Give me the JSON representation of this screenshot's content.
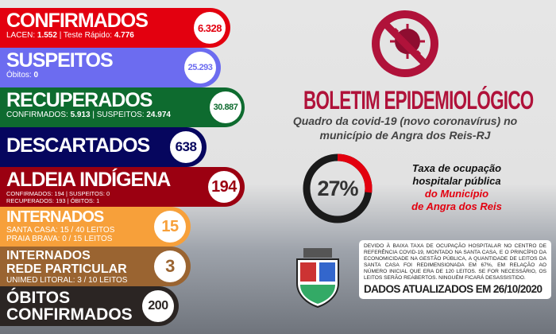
{
  "cards": [
    {
      "title": "CONFIRMADOS",
      "sub1": "LACEN: ",
      "v1": "1.552",
      "sep": " | Teste Rápido: ",
      "v2": "4.776",
      "value": "6.328",
      "color": "#e3000f"
    },
    {
      "title": "SUSPEITOS",
      "sub1": "Óbitos: ",
      "v1": "0",
      "value": "25.293",
      "color": "#6c6cf0"
    },
    {
      "title": "RECUPERADOS",
      "sub1": "CONFIRMADOS: ",
      "v1": "5.913",
      "sep": " | SUSPEITOS: ",
      "v2": "24.974",
      "value": "30.887",
      "color": "#0e6b2f"
    },
    {
      "title": "DESCARTADOS",
      "value": "638",
      "color": "#06065e"
    },
    {
      "title": "ALDEIA INDÍGENA",
      "line1": "CONFIRMADOS: 194 | SUSPEITOS: 0",
      "line2": "RECUPERADOS: 193 | ÓBITOS: 1",
      "value": "194",
      "color": "#9b0011"
    },
    {
      "title": "INTERNADOS",
      "line1": "SANTA CASA: 15 / 40 LEITOS",
      "line2": "PRAIA BRAVA: 0 / 15 LEITOS",
      "value": "15",
      "color": "#f7a03a"
    },
    {
      "title": "INTERNADOS",
      "title2": "REDE PARTICULAR",
      "line1": "UNIMED LITORAL: 3 / 10 LEITOS",
      "value": "3",
      "color": "#9a6431"
    },
    {
      "title": "ÓBITOS",
      "title2": "CONFIRMADOS",
      "value": "200",
      "color": "#2b2523"
    }
  ],
  "header": {
    "title": "BOLETIM EPIDEMIOLÓGICO",
    "subtitle1": "Quadro da covid-19 (novo coronavírus) no",
    "subtitle2": "município de Angra dos Reis-RJ",
    "icon": "no-virus-icon",
    "accent": "#b0123a"
  },
  "occupancy": {
    "percent": 27,
    "label": "27%",
    "text1": "Taxa de ocupação",
    "text2": "hospitalar pública",
    "text3": "do Município",
    "text4": "de Angra dos Reis"
  },
  "notice": {
    "text": "DEVIDO À BAIXA TAXA DE OCUPAÇÃO HOSPITALAR NO CENTRO DE REFERÊNCIA COVID-19, MONTADO NA SANTA CASA, E O PRINCÍPIO DA ECONOMICIDADE NA GESTÃO PÚBLICA, A QUANTIDADE DE LEITOS DA SANTA CASA FOI REDIMENSIONADA EM 67%, EM RELAÇÃO AO NÚMERO INICIAL QUE ERA DE 120 LEITOS. SE FOR NECESSÁRIO, OS LEITOS SERÃO REABERTOS. NINGUÉM FICARÁ DESASSISTIDO.",
    "updated": "DADOS ATUALIZADOS EM 26/10/2020"
  }
}
